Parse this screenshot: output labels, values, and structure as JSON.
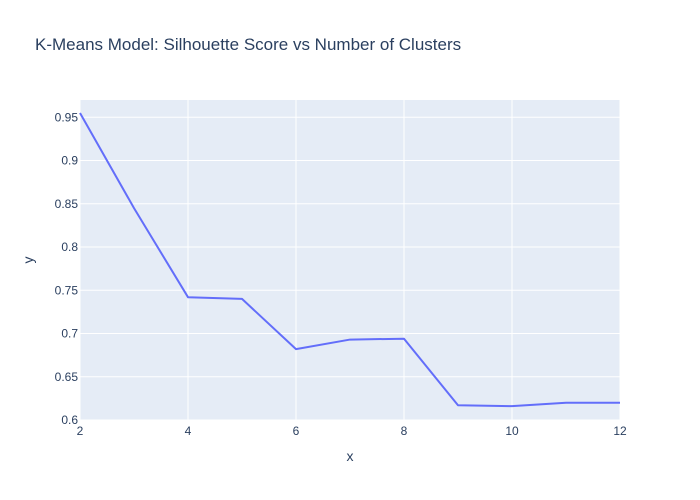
{
  "chart_data": {
    "type": "line",
    "title": "K-Means Model: Silhouette Score vs Number of Clusters",
    "xlabel": "x",
    "ylabel": "y",
    "xlim": [
      2,
      12
    ],
    "ylim": [
      0.6,
      0.97
    ],
    "xticks": [
      2,
      4,
      6,
      8,
      10,
      12
    ],
    "yticks": [
      0.6,
      0.65,
      0.7,
      0.75,
      0.8,
      0.85,
      0.9,
      0.95
    ],
    "grid": true,
    "legend": "none",
    "colors": {
      "plot_background": "#e5ecf6",
      "grid": "#ffffff",
      "line": "#636efa",
      "text": "#2a3f5f"
    },
    "series": [
      {
        "x": [
          2,
          3,
          4,
          5,
          6,
          7,
          8,
          9,
          10,
          11,
          12
        ],
        "values": [
          0.955,
          0.845,
          0.742,
          0.74,
          0.682,
          0.693,
          0.694,
          0.617,
          0.616,
          0.62,
          0.62
        ]
      }
    ]
  }
}
